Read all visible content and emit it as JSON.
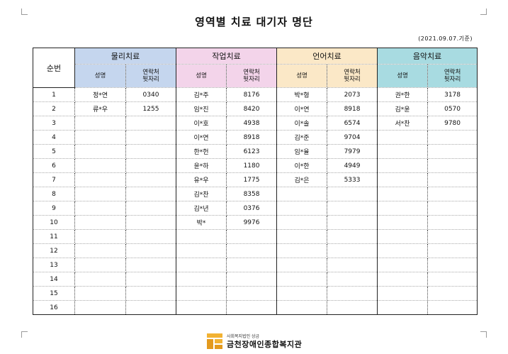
{
  "title": "영역별 치료 대기자 명단",
  "date_note": "(2021.09.07.기준)",
  "table": {
    "order_header": "순번",
    "areas": [
      {
        "name": "물리치료",
        "color": "#c5d6ee"
      },
      {
        "name": "작업치료",
        "color": "#f3d4ea"
      },
      {
        "name": "언어치료",
        "color": "#fbe8c7"
      },
      {
        "name": "음악치료",
        "color": "#a8dbe1"
      }
    ],
    "sub_name": "성명",
    "sub_contact_1": "연락처",
    "sub_contact_2": "뒷자리",
    "rows": [
      {
        "no": "1",
        "pt_name": "정*연",
        "pt_num": "0340",
        "ot_name": "김*주",
        "ot_num": "8176",
        "st_name": "박*형",
        "st_num": "2073",
        "mt_name": "권*한",
        "mt_num": "3178"
      },
      {
        "no": "2",
        "pt_name": "류*우",
        "pt_num": "1255",
        "ot_name": "임*진",
        "ot_num": "8420",
        "st_name": "이*연",
        "st_num": "8918",
        "mt_name": "김*윤",
        "mt_num": "0570"
      },
      {
        "no": "3",
        "pt_name": "",
        "pt_num": "",
        "ot_name": "이*호",
        "ot_num": "4938",
        "st_name": "이*솔",
        "st_num": "6574",
        "mt_name": "서*찬",
        "mt_num": "9780"
      },
      {
        "no": "4",
        "pt_name": "",
        "pt_num": "",
        "ot_name": "이*연",
        "ot_num": "8918",
        "st_name": "김*준",
        "st_num": "9704",
        "mt_name": "",
        "mt_num": ""
      },
      {
        "no": "5",
        "pt_name": "",
        "pt_num": "",
        "ot_name": "한*헌",
        "ot_num": "6123",
        "st_name": "임*율",
        "st_num": "7979",
        "mt_name": "",
        "mt_num": ""
      },
      {
        "no": "6",
        "pt_name": "",
        "pt_num": "",
        "ot_name": "윤*하",
        "ot_num": "1180",
        "st_name": "이*한",
        "st_num": "4949",
        "mt_name": "",
        "mt_num": ""
      },
      {
        "no": "7",
        "pt_name": "",
        "pt_num": "",
        "ot_name": "유*우",
        "ot_num": "1775",
        "st_name": "김*은",
        "st_num": "5333",
        "mt_name": "",
        "mt_num": ""
      },
      {
        "no": "8",
        "pt_name": "",
        "pt_num": "",
        "ot_name": "김*찬",
        "ot_num": "8358",
        "st_name": "",
        "st_num": "",
        "mt_name": "",
        "mt_num": ""
      },
      {
        "no": "9",
        "pt_name": "",
        "pt_num": "",
        "ot_name": "김*년",
        "ot_num": "0376",
        "st_name": "",
        "st_num": "",
        "mt_name": "",
        "mt_num": ""
      },
      {
        "no": "10",
        "pt_name": "",
        "pt_num": "",
        "ot_name": "박*",
        "ot_num": "9976",
        "st_name": "",
        "st_num": "",
        "mt_name": "",
        "mt_num": ""
      },
      {
        "no": "11",
        "pt_name": "",
        "pt_num": "",
        "ot_name": "",
        "ot_num": "",
        "st_name": "",
        "st_num": "",
        "mt_name": "",
        "mt_num": ""
      },
      {
        "no": "12",
        "pt_name": "",
        "pt_num": "",
        "ot_name": "",
        "ot_num": "",
        "st_name": "",
        "st_num": "",
        "mt_name": "",
        "mt_num": ""
      },
      {
        "no": "13",
        "pt_name": "",
        "pt_num": "",
        "ot_name": "",
        "ot_num": "",
        "st_name": "",
        "st_num": "",
        "mt_name": "",
        "mt_num": ""
      },
      {
        "no": "14",
        "pt_name": "",
        "pt_num": "",
        "ot_name": "",
        "ot_num": "",
        "st_name": "",
        "st_num": "",
        "mt_name": "",
        "mt_num": ""
      },
      {
        "no": "15",
        "pt_name": "",
        "pt_num": "",
        "ot_name": "",
        "ot_num": "",
        "st_name": "",
        "st_num": "",
        "mt_name": "",
        "mt_num": ""
      },
      {
        "no": "16",
        "pt_name": "",
        "pt_num": "",
        "ot_name": "",
        "ot_num": "",
        "st_name": "",
        "st_num": "",
        "mt_name": "",
        "mt_num": ""
      }
    ]
  },
  "footer": {
    "org_small": "사회복지법인 상금",
    "org_name": "금천장애인종합복지관",
    "logo_icon": "institution-logo"
  }
}
